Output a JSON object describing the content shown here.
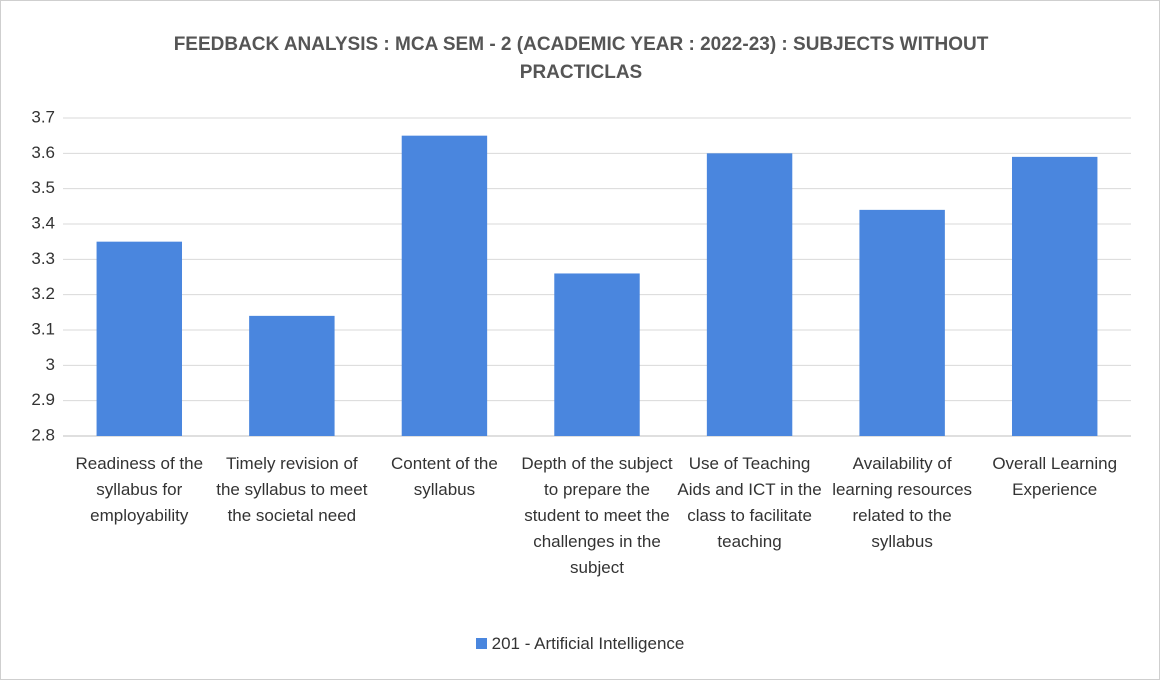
{
  "chart_data": {
    "type": "bar",
    "title": "FEEDBACK ANALYSIS : MCA SEM - 2 (ACADEMIC YEAR : 2022-23) : SUBJECTS WITHOUT PRACTICLAS",
    "categories": [
      "Readiness of the syllabus for employability",
      "Timely revision of the syllabus to meet the societal need",
      "Content of the syllabus",
      "Depth of the subject to prepare the student to meet the challenges in the subject",
      "Use of Teaching Aids and ICT in the class to facilitate teaching",
      "Availability of learning resources related to the syllabus",
      "Overall Learning Experience"
    ],
    "series": [
      {
        "name": "201 - Artificial Intelligence",
        "color": "#4a86de",
        "values": [
          3.35,
          3.14,
          3.65,
          3.26,
          3.6,
          3.44,
          3.59
        ]
      }
    ],
    "ylim": [
      2.8,
      3.7
    ],
    "yticks": [
      2.8,
      2.9,
      3,
      3.1,
      3.2,
      3.3,
      3.4,
      3.5,
      3.6,
      3.7
    ],
    "grid": true,
    "legend": "bottom"
  }
}
